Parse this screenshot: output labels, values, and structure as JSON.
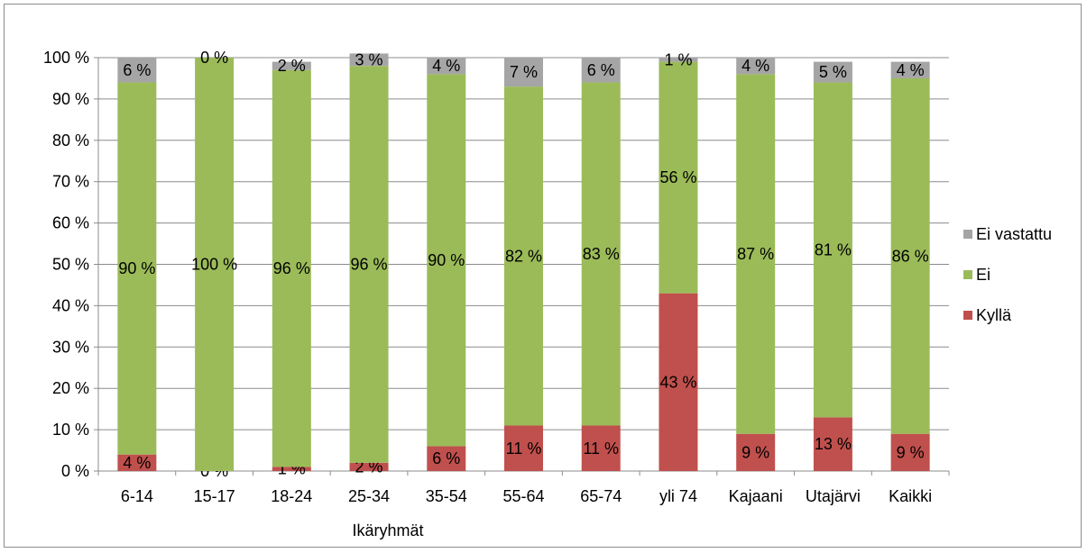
{
  "chart_data": {
    "type": "bar",
    "stacked": true,
    "percent": true,
    "xlabel": "Ikäryhmät",
    "ylabel": "",
    "title": "",
    "ylim": [
      0,
      100
    ],
    "yticks": [
      "0 %",
      "10 %",
      "20 %",
      "30 %",
      "40 %",
      "50 %",
      "60 %",
      "70 %",
      "80 %",
      "90 %",
      "100 %"
    ],
    "grid": true,
    "legend_position": "right",
    "categories": [
      "6-14",
      "15-17",
      "18-24",
      "25-34",
      "35-54",
      "55-64",
      "65-74",
      "yli 74",
      "Kajaani",
      "Utajärvi",
      "Kaikki"
    ],
    "series": [
      {
        "name": "Kyllä",
        "color": "#c0504d",
        "values": [
          4,
          0,
          1,
          2,
          6,
          11,
          11,
          43,
          9,
          13,
          9
        ],
        "labels": [
          "4 %",
          "0 %",
          "1 %",
          "2 %",
          "6 %",
          "11 %",
          "11 %",
          "43 %",
          "9 %",
          "13 %",
          "9 %"
        ]
      },
      {
        "name": "Ei",
        "color": "#9bbb59",
        "values": [
          90,
          100,
          96,
          96,
          90,
          82,
          83,
          56,
          87,
          81,
          86
        ],
        "labels": [
          "90 %",
          "100 %",
          "96 %",
          "96 %",
          "90 %",
          "82 %",
          "83 %",
          "56 %",
          "87 %",
          "81 %",
          "86 %"
        ]
      },
      {
        "name": "Ei vastattu",
        "color": "#a5a5a5",
        "values": [
          6,
          0,
          2,
          3,
          4,
          7,
          6,
          1,
          4,
          5,
          4
        ],
        "labels": [
          "6 %",
          "0 %",
          "2 %",
          "3 %",
          "4 %",
          "7 %",
          "6 %",
          "1 %",
          "4 %",
          "5 %",
          "4 %"
        ]
      }
    ],
    "legend": [
      "Ei vastattu",
      "Ei",
      "Kyllä"
    ]
  }
}
